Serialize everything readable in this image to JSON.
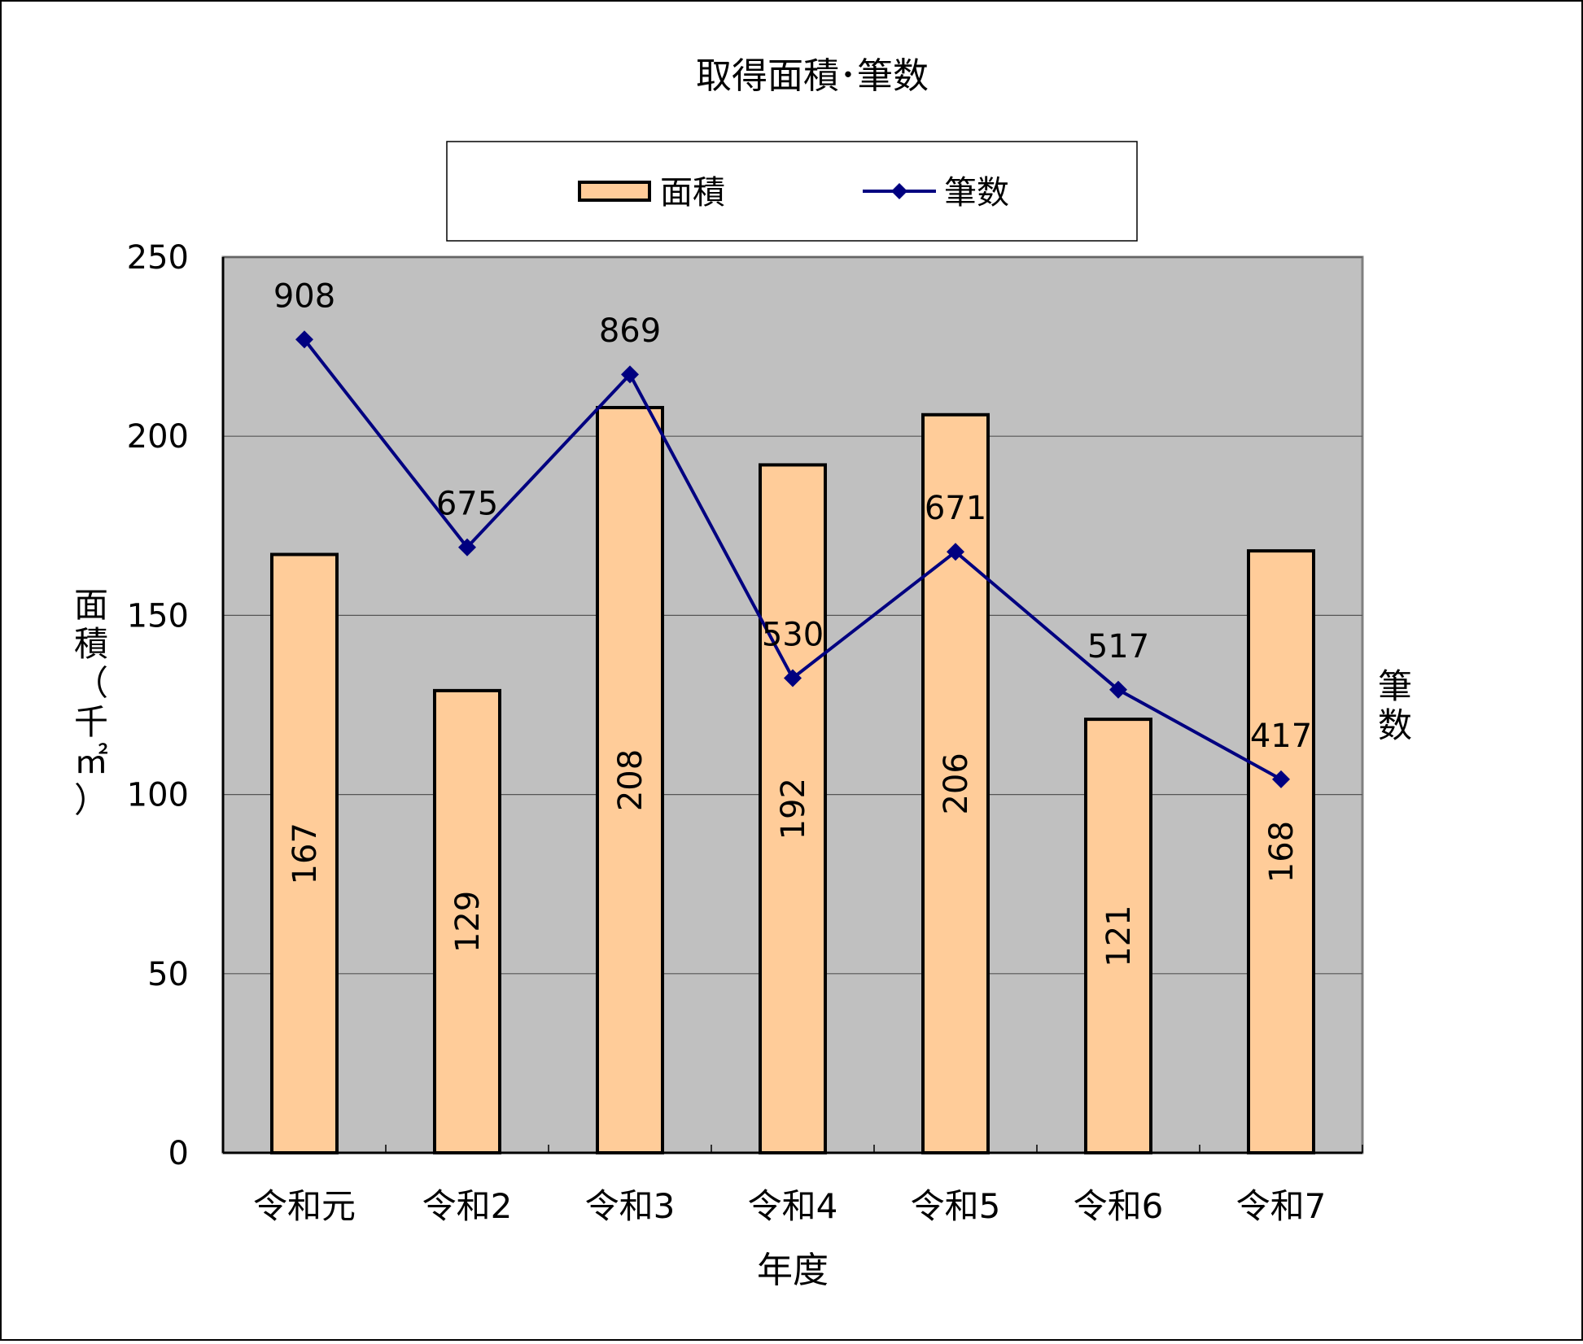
{
  "chart_data": {
    "type": "bar",
    "title": "取得面積･筆数",
    "xlabel": "年度",
    "ylabel": "面積（千㎡）",
    "y2label": "筆数",
    "categories": [
      "令和元",
      "令和2",
      "令和3",
      "令和4",
      "令和5",
      "令和6",
      "令和7"
    ],
    "ylim": [
      0,
      250
    ],
    "yticks": [
      "0",
      "50",
      "100",
      "150",
      "200",
      "250"
    ],
    "grid": true,
    "legend_position": "top",
    "series": [
      {
        "name": "面積",
        "type": "bar",
        "values": [
          167,
          129,
          208,
          192,
          206,
          121,
          168
        ],
        "labels": [
          "167",
          "129",
          "208",
          "192",
          "206",
          "121",
          "168"
        ],
        "color": "#FFCC99"
      },
      {
        "name": "筆数",
        "type": "line",
        "marker": "diamond",
        "values": [
          908,
          675,
          869,
          530,
          671,
          517,
          417
        ],
        "labels": [
          "908",
          "675",
          "869",
          "530",
          "671",
          "517",
          "417"
        ],
        "plotted_on_primary_scale": [
          227,
          169,
          217.25,
          132.5,
          167.75,
          129.25,
          104.25
        ],
        "color": "#000080"
      }
    ],
    "plot_background": "#C0C0C0"
  }
}
